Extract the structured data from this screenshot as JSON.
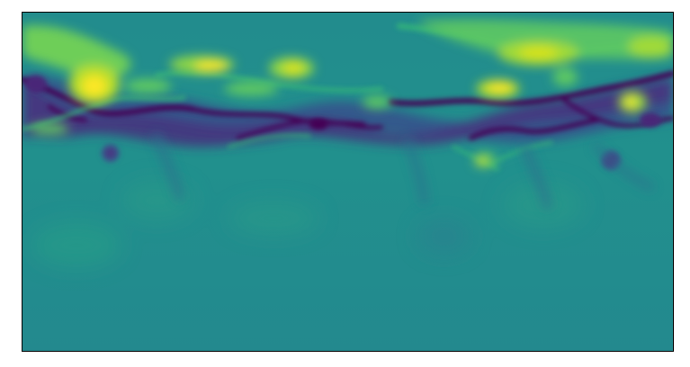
{
  "image": {
    "kind": "scientific-visualization",
    "colormap": "viridis",
    "colors": {
      "background_field": "#21908d",
      "low": "#440154",
      "mid_low": "#31688e",
      "mid": "#21908d",
      "mid_high": "#35b779",
      "high": "#fde725",
      "frame": "#000000"
    },
    "axes": {
      "ticks_visible": false,
      "labels_visible": false
    }
  }
}
